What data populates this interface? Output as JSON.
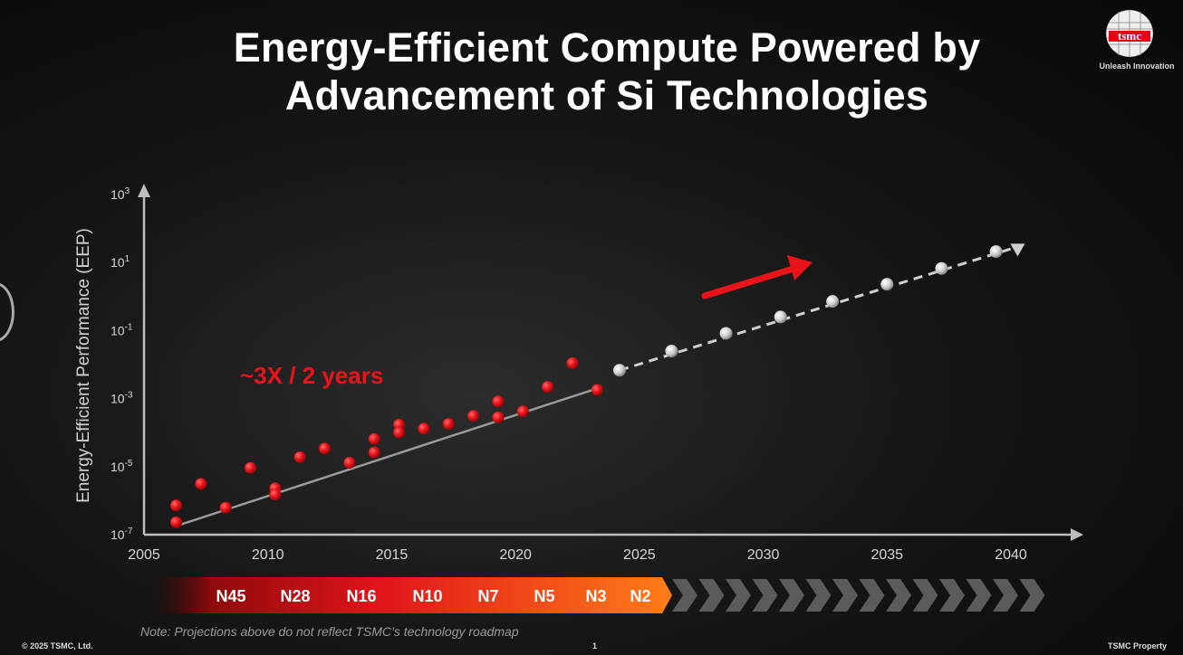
{
  "header": {
    "title_line1": "Energy-Efficient Compute Powered by",
    "title_line2": "Advancement of Si Technologies"
  },
  "logo": {
    "wordmark": "tsmc",
    "tagline": "Unleash Innovation"
  },
  "colors": {
    "accent_red": "#e8141a",
    "actual_point": "#e8141a",
    "projected_point": "#cfcfcf",
    "nodes_bar_end": "#ff7a18"
  },
  "chart_data": {
    "type": "scatter",
    "title": "",
    "ylabel": "Energy-Efficient Performance (EEP)",
    "xlabel": "",
    "yscale": "log",
    "xlim": [
      2005,
      2040
    ],
    "ylim": [
      1e-07,
      1000
    ],
    "x_ticks": [
      "2005",
      "2010",
      "2015",
      "2020",
      "2025",
      "2030",
      "2035",
      "2040"
    ],
    "y_ticks": [
      {
        "base": "10",
        "exp": "3"
      },
      {
        "base": "10",
        "exp": "1"
      },
      {
        "base": "10",
        "exp": "-1"
      },
      {
        "base": "10",
        "exp": "-3"
      },
      {
        "base": "10",
        "exp": "-5"
      },
      {
        "base": "10",
        "exp": "-7"
      }
    ],
    "annotation": "~3X / 2 years",
    "series": [
      {
        "points": [
          [
            2006.3,
            7.2e-07
          ],
          [
            2006.3,
            2.3e-07
          ],
          [
            2007.3,
            3.1e-06
          ],
          [
            2008.3,
            6.2e-07
          ],
          [
            2009.3,
            9.2e-06
          ],
          [
            2010.3,
            2.3e-06
          ],
          [
            2010.3,
            1.5e-06
          ],
          [
            2011.3,
            1.9e-05
          ],
          [
            2012.3,
            3.4e-05
          ],
          [
            2013.3,
            1.3e-05
          ],
          [
            2014.3,
            6.5e-05
          ],
          [
            2014.3,
            2.6e-05
          ],
          [
            2015.3,
            0.00017
          ],
          [
            2015.3,
            0.0001
          ],
          [
            2016.3,
            0.00013
          ],
          [
            2017.3,
            0.00018
          ],
          [
            2018.3,
            0.00031
          ],
          [
            2019.3,
            0.00082
          ],
          [
            2019.3,
            0.00028
          ],
          [
            2020.3,
            0.00042
          ],
          [
            2021.3,
            0.0022
          ],
          [
            2022.3,
            0.011
          ],
          [
            2023.3,
            0.0018
          ]
        ]
      },
      {
        "points": [
          [
            2024.2,
            0.0068
          ],
          [
            2026.3,
            0.025
          ],
          [
            2028.5,
            0.083
          ],
          [
            2030.7,
            0.25
          ],
          [
            2032.8,
            0.72
          ],
          [
            2035.0,
            2.3
          ],
          [
            2037.2,
            6.7
          ],
          [
            2039.4,
            21
          ]
        ]
      }
    ],
    "trend_actual": {
      "x": [
        2006.3,
        2023.3
      ],
      "y": [
        1.8e-07,
        0.002
      ]
    },
    "trend_projected": {
      "x": [
        2024.2,
        2040.2
      ],
      "y": [
        0.0068,
        28
      ]
    },
    "nodes": [
      "N45",
      "N28",
      "N16",
      "N10",
      "N7",
      "N5",
      "N3",
      "N2"
    ]
  },
  "footer": {
    "note": "Note: Projections above do not reflect TSMC’s technology roadmap",
    "copyright": "© 2025 TSMC, Ltd.",
    "page": "1",
    "property": "TSMC Property"
  }
}
